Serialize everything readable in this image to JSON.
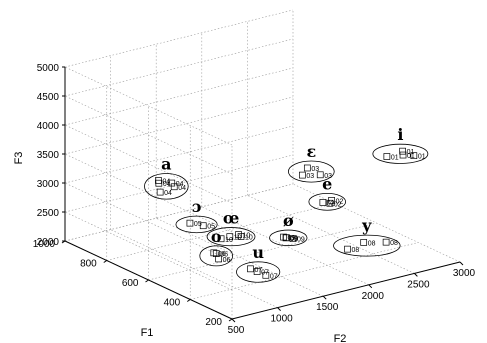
{
  "chart_data": {
    "type": "scatter3d",
    "title": "",
    "xlabel": "F2",
    "ylabel": "F1",
    "zlabel": "F3",
    "xlim": [
      500,
      3000
    ],
    "ylim": [
      200,
      1000
    ],
    "zlim": [
      2000,
      5000
    ],
    "x_ticks": [
      "500",
      "1000",
      "1500",
      "2000",
      "2500",
      "3000"
    ],
    "y_ticks": [
      "200",
      "400",
      "600",
      "800",
      "1000"
    ],
    "z_ticks": [
      "2000",
      "2500",
      "3000",
      "3500",
      "4000",
      "4500",
      "5000"
    ],
    "grid": true,
    "clusters": [
      {
        "name": "i",
        "points": [
          {
            "label": "01",
            "F2": 2450,
            "F1": 310,
            "F3": 3850
          },
          {
            "label": "01",
            "F2": 2600,
            "F1": 300,
            "F3": 3900
          },
          {
            "label": "01",
            "F2": 2700,
            "F1": 290,
            "F3": 3800
          },
          {
            "label": "01",
            "F2": 2650,
            "F1": 320,
            "F3": 3780
          }
        ]
      },
      {
        "name": "ɛ",
        "points": [
          {
            "label": "03",
            "F2": 2050,
            "F1": 540,
            "F3": 3300
          },
          {
            "label": "03",
            "F2": 2150,
            "F1": 560,
            "F3": 3350
          },
          {
            "label": "03",
            "F2": 2200,
            "F1": 520,
            "F3": 3280
          }
        ]
      },
      {
        "name": "e",
        "points": [
          {
            "label": "02",
            "F2": 2000,
            "F1": 420,
            "F3": 3050
          },
          {
            "label": "02",
            "F2": 2050,
            "F1": 400,
            "F3": 3100
          },
          {
            "label": "02",
            "F2": 2100,
            "F1": 430,
            "F3": 2980
          }
        ]
      },
      {
        "name": "a",
        "points": [
          {
            "label": "04",
            "F2": 1250,
            "F1": 880,
            "F3": 2950
          },
          {
            "label": "04",
            "F2": 1350,
            "F1": 860,
            "F3": 2900
          },
          {
            "label": "04",
            "F2": 1300,
            "F1": 900,
            "F3": 2850
          },
          {
            "label": "04",
            "F2": 1400,
            "F1": 870,
            "F3": 2800
          },
          {
            "label": "04",
            "F2": 1200,
            "F1": 850,
            "F3": 2820
          }
        ]
      },
      {
        "name": "ɔ",
        "points": [
          {
            "label": "05",
            "F2": 1000,
            "F1": 620,
            "F3": 2750
          },
          {
            "label": "05",
            "F2": 1100,
            "F1": 600,
            "F3": 2700
          }
        ]
      },
      {
        "name": "o",
        "points": [
          {
            "label": "06",
            "F2": 850,
            "F1": 440,
            "F3": 2600
          },
          {
            "label": "06",
            "F2": 900,
            "F1": 450,
            "F3": 2550
          },
          {
            "label": "06",
            "F2": 880,
            "F1": 430,
            "F3": 2500
          }
        ]
      },
      {
        "name": "ø",
        "points": [
          {
            "label": "09",
            "F2": 1550,
            "F1": 400,
            "F3": 2650
          },
          {
            "label": "09",
            "F2": 1600,
            "F1": 420,
            "F3": 2600
          },
          {
            "label": "09",
            "F2": 1500,
            "F1": 390,
            "F3": 2700
          },
          {
            "label": "09",
            "F2": 1650,
            "F1": 410,
            "F3": 2580
          }
        ]
      },
      {
        "name": "œ",
        "points": [
          {
            "label": "10",
            "F2": 1300,
            "F1": 560,
            "F3": 2500
          },
          {
            "label": "10",
            "F2": 1350,
            "F1": 540,
            "F3": 2550
          },
          {
            "label": "10",
            "F2": 1250,
            "F1": 580,
            "F3": 2450
          },
          {
            "label": "10",
            "F2": 1400,
            "F1": 550,
            "F3": 2480
          }
        ]
      },
      {
        "name": "u",
        "points": [
          {
            "label": "07",
            "F2": 1050,
            "F1": 320,
            "F3": 2400
          },
          {
            "label": "07",
            "F2": 1100,
            "F1": 300,
            "F3": 2350
          },
          {
            "label": "07",
            "F2": 1000,
            "F1": 330,
            "F3": 2450
          }
        ]
      },
      {
        "name": "y",
        "points": [
          {
            "label": "08",
            "F2": 1950,
            "F1": 280,
            "F3": 2500
          },
          {
            "label": "08",
            "F2": 2150,
            "F1": 290,
            "F3": 2520
          },
          {
            "label": "08",
            "F2": 2350,
            "F1": 270,
            "F3": 2480
          }
        ]
      }
    ]
  }
}
